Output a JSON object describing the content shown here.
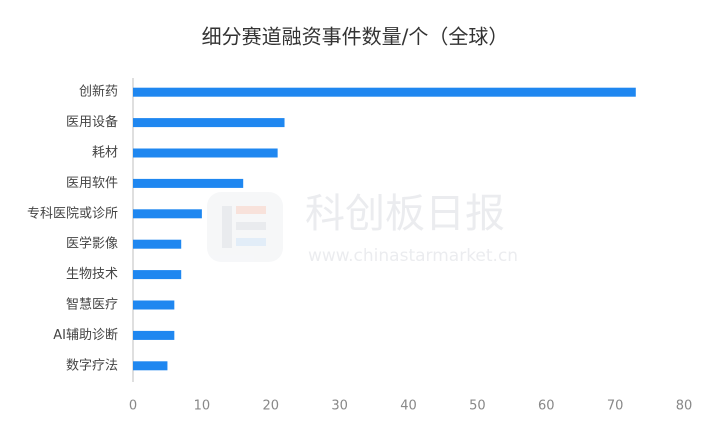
{
  "chart_data": {
    "type": "barh",
    "title": "细分赛道融资事件数量/个（全球）",
    "categories": [
      "创新药",
      "医用设备",
      "耗材",
      "医用软件",
      "专科医院或诊所",
      "医学影像",
      "生物技术",
      "智慧医疗",
      "AI辅助诊断",
      "数字疗法"
    ],
    "values": [
      73,
      22,
      21,
      16,
      10,
      7,
      7,
      6,
      6,
      5
    ],
    "color": "#1f87f0",
    "xlim": [
      0,
      80
    ],
    "xticks": [
      0,
      10,
      20,
      30,
      40,
      50,
      60,
      70,
      80
    ],
    "grid": false
  },
  "watermark": {
    "name": "科创板日报",
    "url": "www.chinastarmarket.cn"
  }
}
